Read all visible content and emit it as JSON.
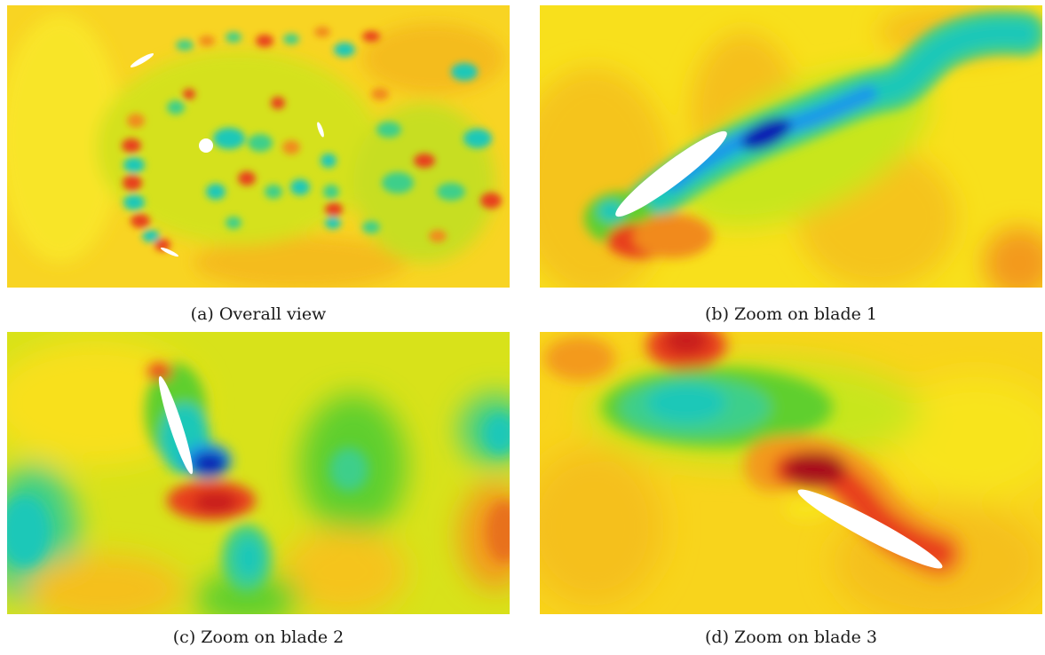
{
  "figure": {
    "panels": [
      {
        "id": "a",
        "caption": "(a) Overall view"
      },
      {
        "id": "b",
        "caption": "(b) Zoom on blade 1"
      },
      {
        "id": "c",
        "caption": "(c) Zoom on blade 2"
      },
      {
        "id": "d",
        "caption": "(d) Zoom on blade 3"
      }
    ]
  },
  "colors": {
    "background_field": "#f8e41a",
    "low_strong": "#0a1cb4",
    "low": "#1a9ae8",
    "mid_low": "#1cc8b8",
    "neutral_green": "#5fcf2e",
    "pale_green": "#c8e61a",
    "warm": "#f7a81b",
    "high": "#e8411a",
    "high_strong": "#a80d1a",
    "body": "#ffffff"
  }
}
